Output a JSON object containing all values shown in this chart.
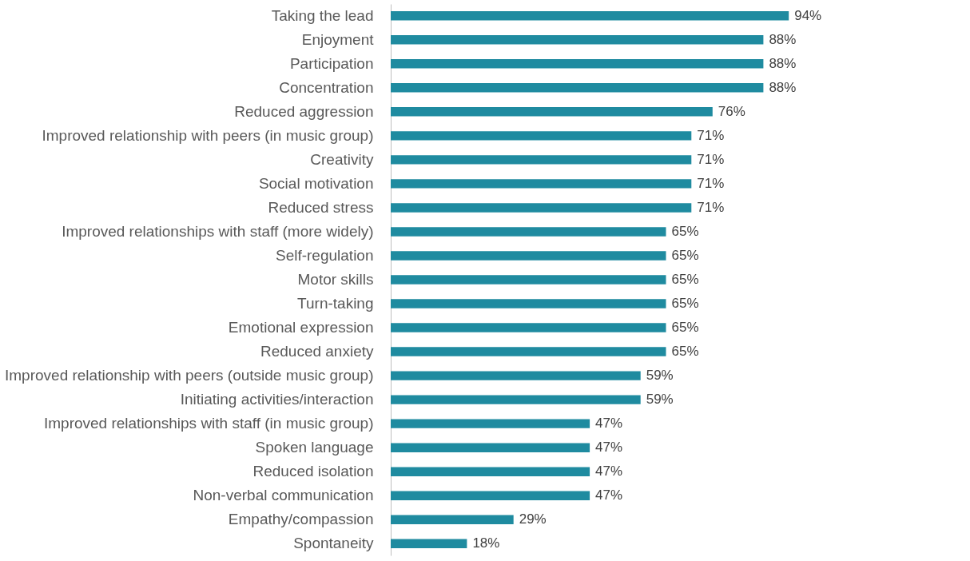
{
  "chart_data": {
    "type": "bar",
    "orientation": "horizontal",
    "categories": [
      "Taking the lead",
      "Enjoyment",
      "Participation",
      "Concentration",
      "Reduced aggression",
      "Improved relationship with peers (in music group)",
      "Creativity",
      "Social motivation",
      "Reduced stress",
      "Improved relationships with staff (more widely)",
      "Self-regulation",
      "Motor skills",
      "Turn-taking",
      "Emotional expression",
      "Reduced anxiety",
      "Improved relationship with peers (outside music group)",
      "Initiating activities/interaction",
      "Improved relationships with staff (in music group)",
      "Spoken language",
      "Reduced isolation",
      "Non-verbal communication",
      "Empathy/compassion",
      "Spontaneity"
    ],
    "values": [
      94,
      88,
      88,
      88,
      76,
      71,
      71,
      71,
      71,
      65,
      65,
      65,
      65,
      65,
      65,
      59,
      59,
      47,
      47,
      47,
      47,
      29,
      18
    ],
    "value_labels": [
      "94%",
      "88%",
      "88%",
      "88%",
      "76%",
      "71%",
      "71%",
      "71%",
      "71%",
      "65%",
      "65%",
      "65%",
      "65%",
      "65%",
      "65%",
      "59%",
      "59%",
      "47%",
      "47%",
      "47%",
      "47%",
      "29%",
      "18%"
    ],
    "color": "#1f8ba0"
  }
}
